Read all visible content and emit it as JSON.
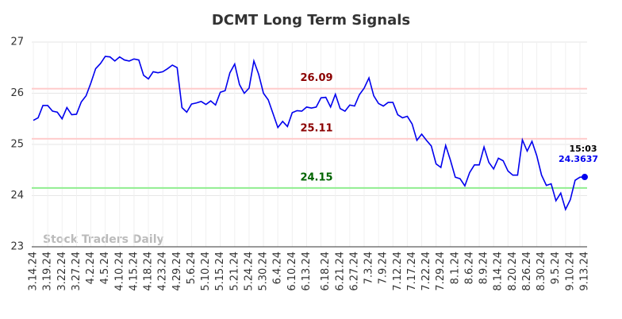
{
  "chart_data": {
    "type": "line",
    "title": "DCMT Long Term Signals",
    "watermark": "Stock Traders Daily",
    "color": "#0000ee",
    "categories": [
      "3.14.24",
      null,
      null,
      "3.19.24",
      null,
      null,
      "3.22.24",
      null,
      null,
      "3.27.24",
      null,
      null,
      "4.2.24",
      null,
      null,
      "4.5.24",
      null,
      null,
      "4.10.24",
      null,
      null,
      "4.15.24",
      null,
      null,
      "4.18.24",
      null,
      null,
      "4.23.24",
      null,
      null,
      "4.29.24",
      null,
      null,
      "5.6.24",
      null,
      null,
      "5.10.24",
      null,
      null,
      "5.15.24",
      null,
      null,
      "5.21.24",
      null,
      null,
      "5.24.24",
      null,
      null,
      "5.30.24",
      null,
      null,
      "6.4.24",
      null,
      null,
      "6.10.24",
      null,
      null,
      "6.13.24",
      null,
      null,
      null,
      "6.18.24",
      null,
      null,
      "6.21.24",
      null,
      null,
      "6.27.24",
      null,
      null,
      "7.3.24",
      null,
      null,
      "7.9.24",
      null,
      null,
      "7.12.24",
      null,
      null,
      "7.17.24",
      null,
      null,
      "7.22.24",
      null,
      null,
      "7.29.24",
      null,
      null,
      "8.1.24",
      null,
      null,
      "8.6.24",
      null,
      null,
      "8.9.24",
      null,
      null,
      "8.14.24",
      null,
      null,
      "8.20.24",
      null,
      null,
      "8.26.24",
      null,
      null,
      "8.30.24",
      null,
      null,
      "9.5.24",
      null,
      null,
      "9.10.24",
      null,
      null,
      "9.13.24"
    ],
    "values": [
      25.47,
      25.52,
      25.76,
      25.76,
      25.65,
      25.63,
      25.5,
      25.72,
      25.58,
      25.59,
      25.83,
      25.95,
      26.2,
      26.48,
      26.58,
      26.72,
      26.71,
      26.63,
      26.71,
      26.65,
      26.63,
      26.67,
      26.65,
      26.35,
      26.28,
      26.42,
      26.4,
      26.42,
      26.48,
      26.55,
      26.5,
      25.72,
      25.63,
      25.79,
      25.81,
      25.84,
      25.78,
      25.85,
      25.77,
      26.02,
      26.05,
      26.4,
      26.57,
      26.17,
      26.0,
      26.1,
      26.63,
      26.37,
      26.0,
      25.87,
      25.6,
      25.33,
      25.45,
      25.35,
      25.62,
      25.66,
      25.65,
      25.73,
      25.71,
      25.73,
      25.91,
      25.92,
      25.73,
      25.98,
      25.7,
      25.65,
      25.77,
      25.75,
      25.97,
      26.1,
      26.3,
      25.95,
      25.8,
      25.75,
      25.82,
      25.82,
      25.58,
      25.52,
      25.55,
      25.4,
      25.08,
      25.2,
      25.08,
      24.97,
      24.62,
      24.55,
      24.98,
      24.69,
      24.36,
      24.33,
      24.19,
      24.45,
      24.6,
      24.6,
      24.95,
      24.65,
      24.52,
      24.73,
      24.68,
      24.48,
      24.4,
      24.4,
      25.09,
      24.87,
      25.06,
      24.78,
      24.4,
      24.2,
      24.23,
      23.9,
      24.05,
      23.73,
      23.92,
      24.3,
      24.36,
      24.3637
    ],
    "last_time": "15:03",
    "levels": [
      {
        "value": 26.09,
        "line_color": "#ffcccc",
        "label_color": "#8b0000"
      },
      {
        "value": 25.11,
        "line_color": "#ffcccc",
        "label_color": "#8b0000"
      },
      {
        "value": 24.15,
        "line_color": "#90ee90",
        "label_color": "#006400"
      }
    ],
    "ylim": [
      23,
      27
    ],
    "yticks": [
      23,
      24,
      25,
      26,
      27
    ],
    "grid": true
  }
}
